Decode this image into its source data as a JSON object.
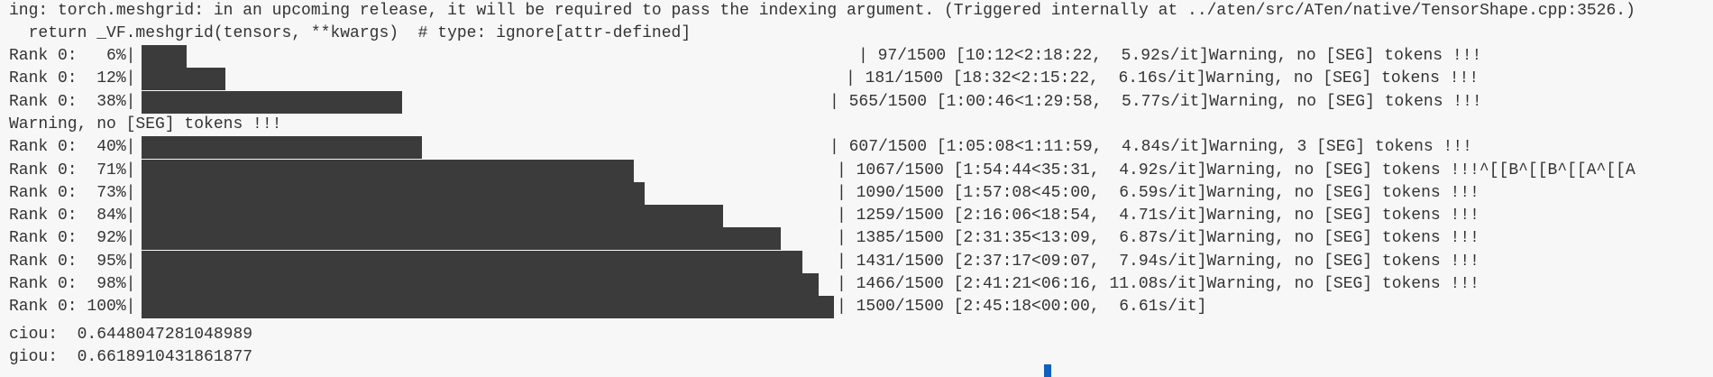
{
  "header_lines": [
    "ing: torch.meshgrid: in an upcoming release, it will be required to pass the indexing argument. (Triggered internally at ../aten/src/ATen/native/TensorShape.cpp:3526.)",
    "  return _VF.meshgrid(tensors, **kwargs)  # type: ignore[attr-defined]"
  ],
  "total": 1500,
  "rows": [
    {
      "label": "Rank 0:   6%|",
      "count": 97,
      "rest": "| 97/1500 [10:12<2:18:22,  5.92s/it]Warning, no [SEG] tokens !!!"
    },
    {
      "label": "Rank 0:  12%|",
      "count": 181,
      "rest": "| 181/1500 [18:32<2:15:22,  6.16s/it]Warning, no [SEG] tokens !!!"
    },
    {
      "label": "Rank 0:  38%|",
      "count": 565,
      "rest": "| 565/1500 [1:00:46<1:29:58,  5.77s/it]Warning, no [SEG] tokens !!!"
    },
    {
      "label": "Warning, no [SEG] tokens !!!",
      "count": null,
      "rest": ""
    },
    {
      "label": "Rank 0:  40%|",
      "count": 607,
      "rest": "| 607/1500 [1:05:08<1:11:59,  4.84s/it]Warning, 3 [SEG] tokens !!!"
    },
    {
      "label": "Rank 0:  71%|",
      "count": 1067,
      "rest": "| 1067/1500 [1:54:44<35:31,  4.92s/it]Warning, no [SEG] tokens !!!^[[B^[[B^[[A^[[A"
    },
    {
      "label": "Rank 0:  73%|",
      "count": 1090,
      "rest": "| 1090/1500 [1:57:08<45:00,  6.59s/it]Warning, no [SEG] tokens !!!"
    },
    {
      "label": "Rank 0:  84%|",
      "count": 1259,
      "rest": "| 1259/1500 [2:16:06<18:54,  4.71s/it]Warning, no [SEG] tokens !!!"
    },
    {
      "label": "Rank 0:  92%|",
      "count": 1385,
      "rest": "| 1385/1500 [2:31:35<13:09,  6.87s/it]Warning, no [SEG] tokens !!!"
    },
    {
      "label": "Rank 0:  95%|",
      "count": 1431,
      "rest": "| 1431/1500 [2:37:17<09:07,  7.94s/it]Warning, no [SEG] tokens !!!"
    },
    {
      "label": "Rank 0:  98%|",
      "count": 1466,
      "rest": "| 1466/1500 [2:41:21<06:16, 11.08s/it]Warning, no [SEG] tokens !!!"
    },
    {
      "label": "Rank 0: 100%|",
      "count": 1500,
      "rest": "| 1500/1500 [2:45:18<00:00,  6.61s/it]"
    }
  ],
  "metrics": [
    "ciou:  0.6448047281048989",
    "giou:  0.6618910431861877"
  ],
  "colors": {
    "background": "#f7f7f7",
    "text": "#333333",
    "bar": "#3b3b3b",
    "separator": "#8a4a3a",
    "cursor": "#1060c0"
  }
}
